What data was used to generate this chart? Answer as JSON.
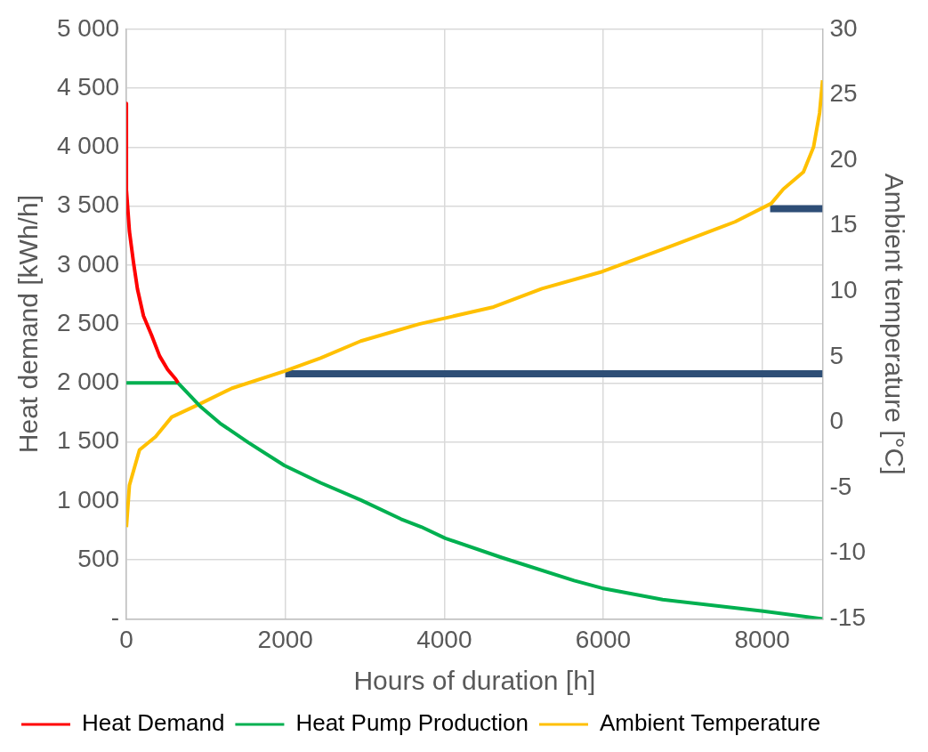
{
  "chart_data": {
    "type": "line",
    "xlabel": "Hours of duration [h]",
    "ylabel": "Heat demand [kWh/h]",
    "y2label": "Ambient temperature [°C]",
    "xlim": [
      0,
      8760
    ],
    "xticks": [
      0,
      2000,
      4000,
      6000,
      8000
    ],
    "ylim": [
      0,
      5000
    ],
    "yticks": [
      {
        "value": 0,
        "label": "-"
      },
      500,
      {
        "value": 1000,
        "label": "1 000"
      },
      {
        "value": 1500,
        "label": "1 500"
      },
      {
        "value": 2000,
        "label": "2 000"
      },
      {
        "value": 2500,
        "label": "2 500"
      },
      {
        "value": 3000,
        "label": "3 000"
      },
      {
        "value": 3500,
        "label": "3 500"
      },
      {
        "value": 4000,
        "label": "4 000"
      },
      {
        "value": 4500,
        "label": "4 500"
      },
      {
        "value": 5000,
        "label": "5 000"
      }
    ],
    "y2lim": [
      -15,
      30
    ],
    "y2ticks": [
      -15,
      -10,
      -5,
      0,
      5,
      10,
      15,
      20,
      25,
      30
    ],
    "grid": true,
    "legend": "bottom",
    "marker": "none",
    "line_style": "solid",
    "series": [
      {
        "name": "Heat Demand",
        "color": "#ff0000",
        "x": [
          0,
          0,
          38,
          89,
          139,
          215,
          316,
          418,
          519,
          620,
          650
        ],
        "values": [
          4370,
          3640,
          3285,
          3024,
          2797,
          2569,
          2407,
          2228,
          2114,
          2033,
          2000
        ]
      },
      {
        "name": "Heat Pump Production",
        "color": "#00b050",
        "x": [
          0,
          650,
          924,
          1177,
          1532,
          1987,
          2443,
          2949,
          3456,
          3709,
          4013,
          4722,
          5633,
          5987,
          6747,
          8013,
          8760
        ],
        "values": [
          2000,
          2000,
          1805,
          1659,
          1496,
          1301,
          1154,
          1008,
          846,
          780,
          683,
          520,
          325,
          260,
          163,
          65,
          0
        ]
      },
      {
        "name": "Ambient Temperature",
        "color": "#ffc000",
        "axis": "y2",
        "x": [
          0,
          38,
          165,
          367,
          570,
          924,
          1329,
          1987,
          2443,
          2949,
          3684,
          4620,
          5228,
          5987,
          6747,
          7658,
          8114,
          8266,
          8519,
          8646,
          8722,
          8760
        ],
        "values": [
          -8.0,
          -4.8,
          -2.1,
          -1.1,
          0.4,
          1.4,
          2.6,
          3.9,
          4.9,
          6.2,
          7.5,
          8.8,
          10.2,
          11.5,
          13.2,
          15.3,
          16.7,
          17.8,
          19.1,
          21.0,
          23.6,
          26.1
        ]
      },
      {
        "color": "#2e4e76",
        "axis": "y2",
        "x": [
          2000,
          8760
        ],
        "values": [
          3.7,
          3.7
        ]
      },
      {
        "color": "#2e4e76",
        "axis": "y2",
        "x": [
          8100,
          8760
        ],
        "values": [
          16.3,
          16.3
        ]
      }
    ]
  }
}
